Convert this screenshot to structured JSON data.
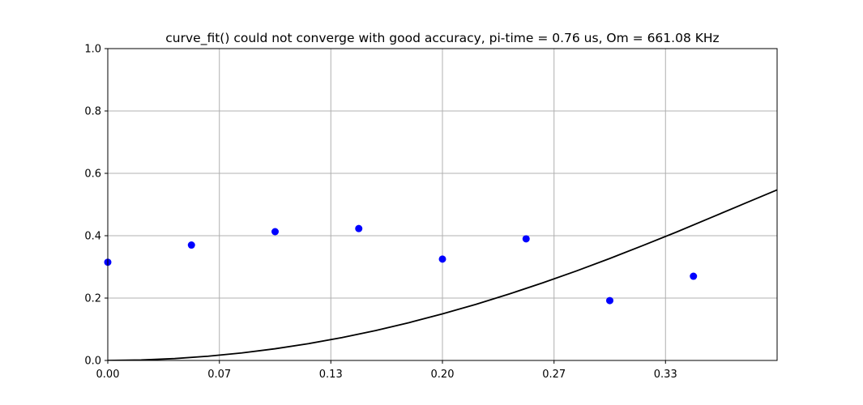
{
  "chart_data": {
    "type": "scatter",
    "title": "curve_fit() could not converge with good accuracy, pi-time = 0.76 us, Om = 661.08 KHz",
    "xlabel": "",
    "ylabel": "",
    "xlim": [
      0.0,
      0.4
    ],
    "ylim": [
      0.0,
      1.0
    ],
    "grid": true,
    "x_ticks": [
      0.0,
      0.0667,
      0.1333,
      0.2,
      0.2667,
      0.3333
    ],
    "x_tick_labels": [
      "0.00",
      "0.07",
      "0.13",
      "0.20",
      "0.27",
      "0.33"
    ],
    "y_ticks": [
      0.0,
      0.2,
      0.4,
      0.6,
      0.8,
      1.0
    ],
    "y_tick_labels": [
      "0.0",
      "0.2",
      "0.4",
      "0.6",
      "0.8",
      "1.0"
    ],
    "series": [
      {
        "kind": "points",
        "color": "#0000ff",
        "x": [
          0.0,
          0.05,
          0.1,
          0.15,
          0.2,
          0.25,
          0.3,
          0.35
        ],
        "y": [
          0.315,
          0.37,
          0.413,
          0.423,
          0.325,
          0.39,
          0.192,
          0.27
        ]
      },
      {
        "kind": "fit-curve",
        "color": "#000000",
        "x": [
          0.0,
          0.02,
          0.04,
          0.06,
          0.08,
          0.1,
          0.12,
          0.14,
          0.16,
          0.18,
          0.2,
          0.22,
          0.24,
          0.26,
          0.28,
          0.3,
          0.32,
          0.34,
          0.36,
          0.38,
          0.4
        ],
        "y": [
          0.0,
          0.0015,
          0.006,
          0.0136,
          0.024,
          0.0375,
          0.054,
          0.0735,
          0.0959,
          0.1212,
          0.1493,
          0.18,
          0.2133,
          0.249,
          0.2869,
          0.327,
          0.369,
          0.412,
          0.457,
          0.502,
          0.547
        ]
      }
    ]
  }
}
